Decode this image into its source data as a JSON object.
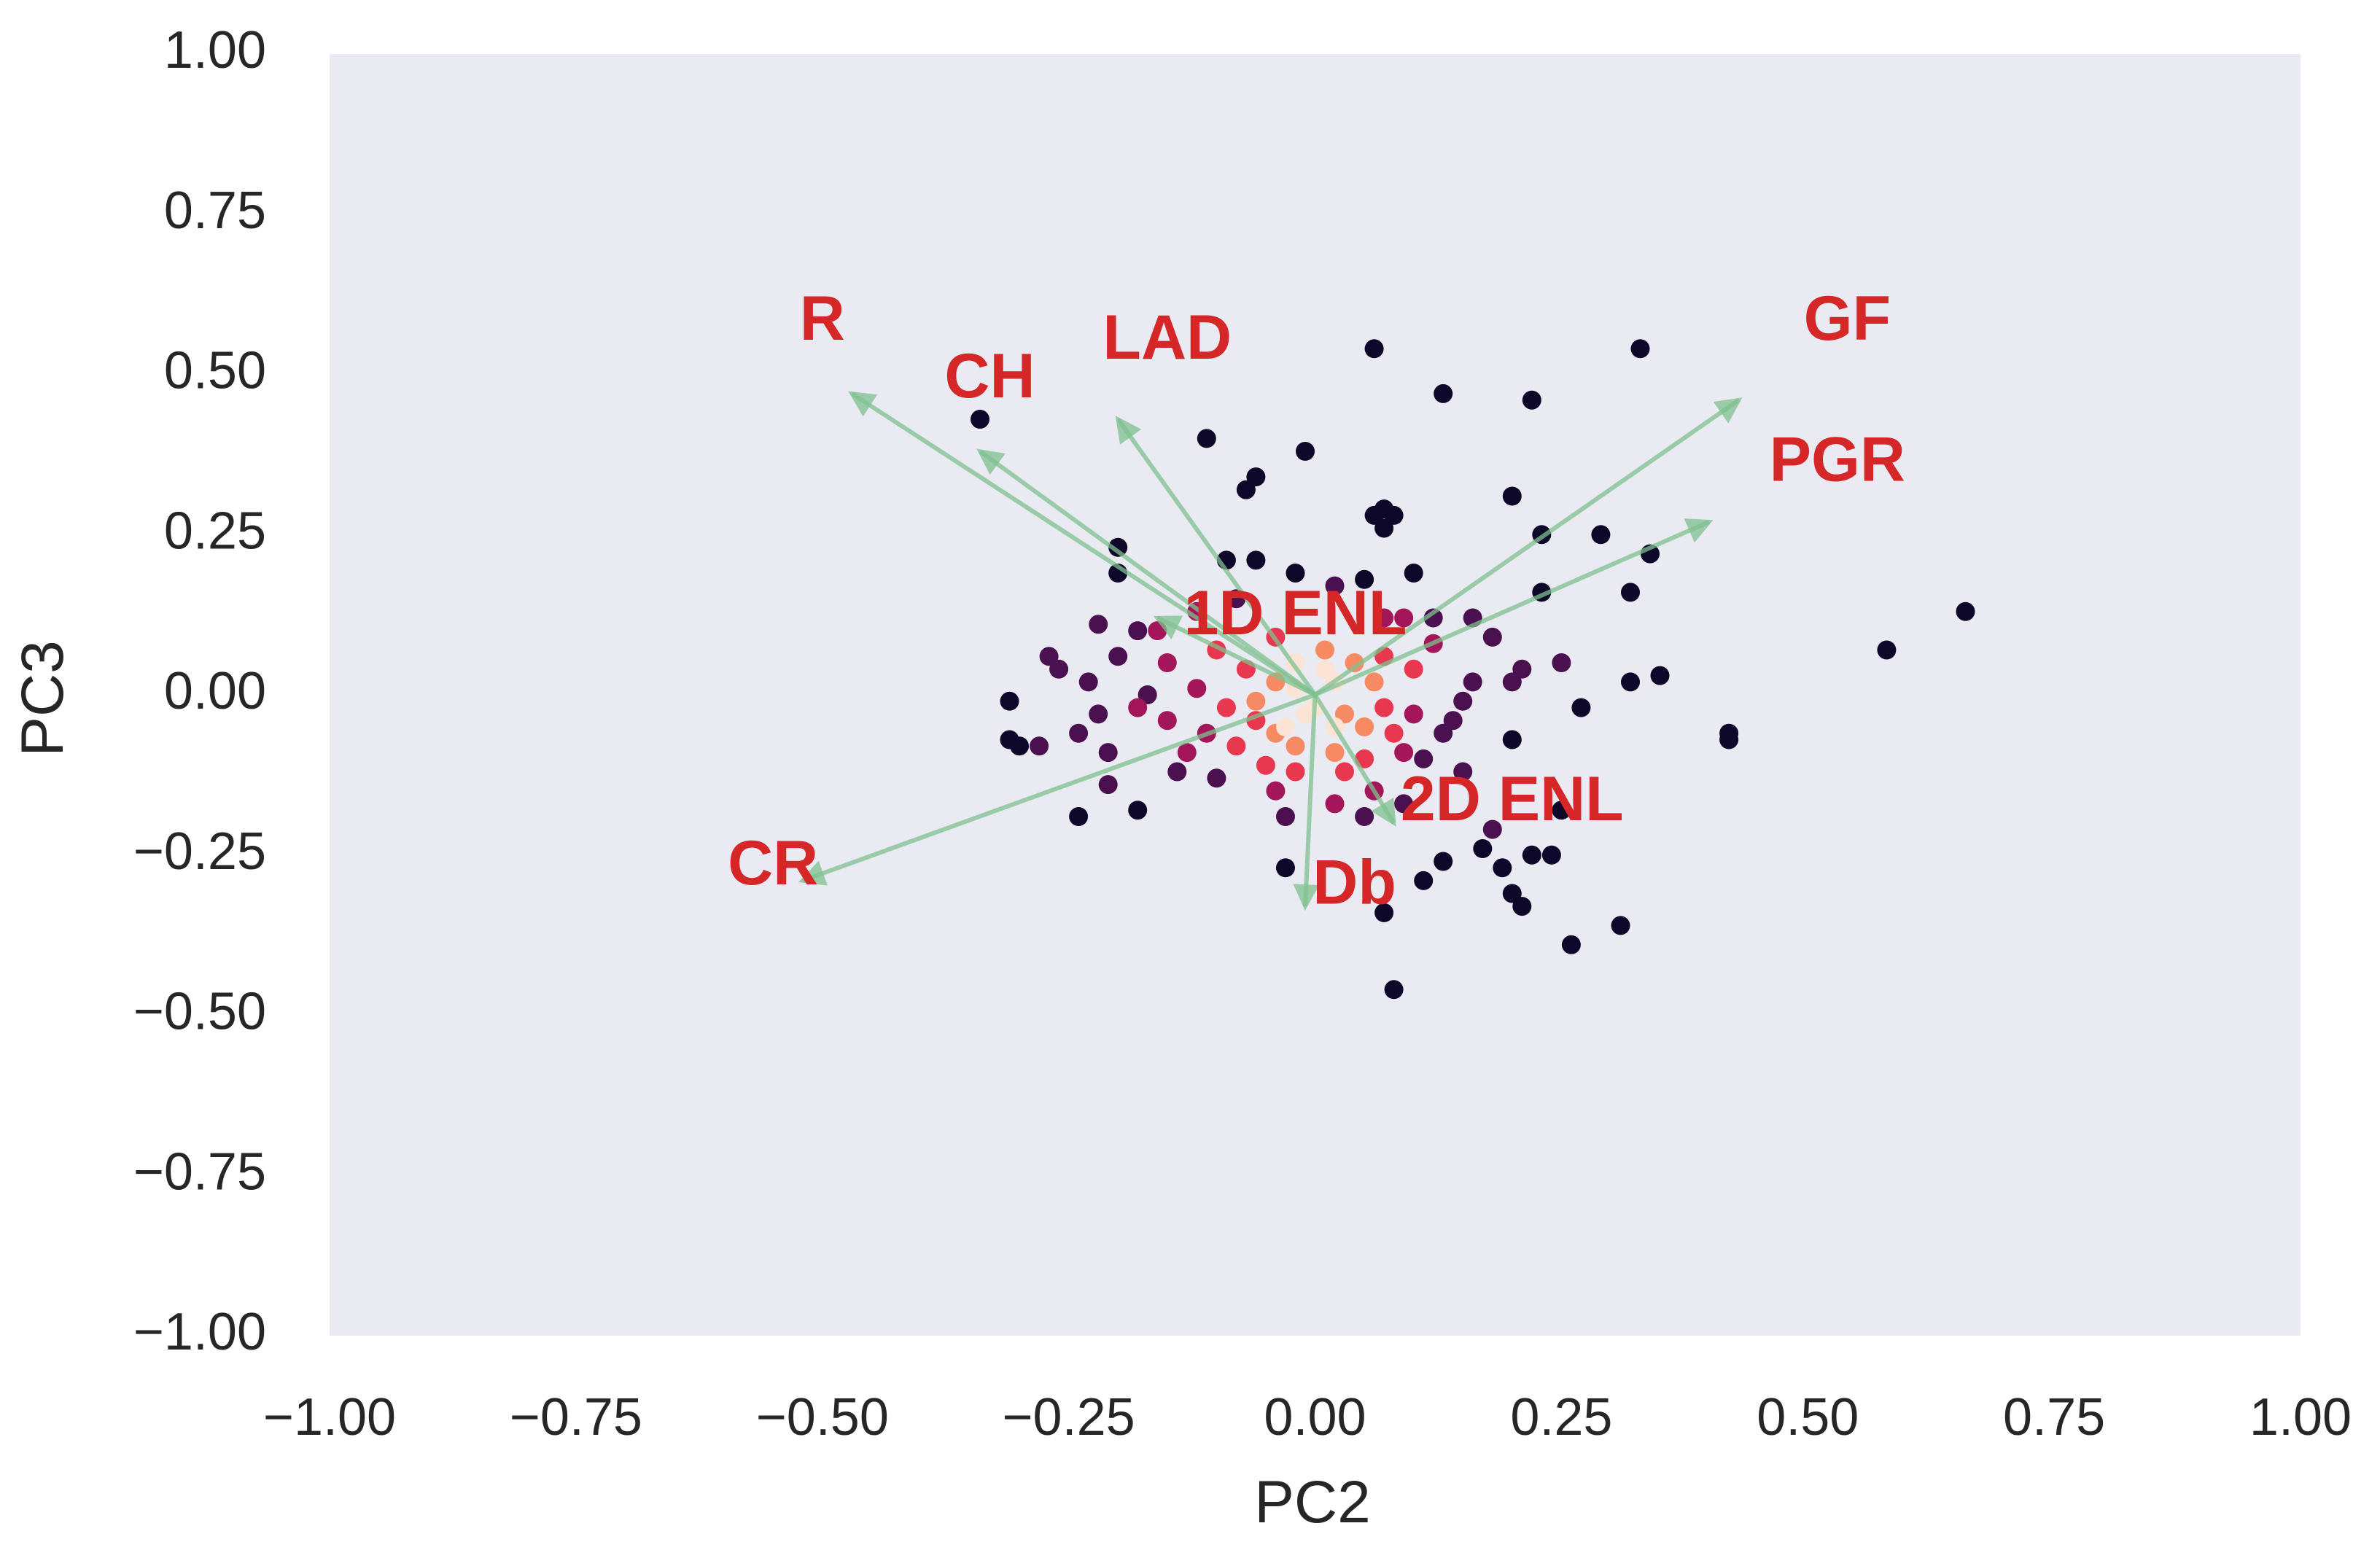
{
  "chart_data": {
    "type": "scatter",
    "title": "",
    "xlabel": "PC2",
    "ylabel": "PC3",
    "xlim": [
      -1.0,
      1.0
    ],
    "ylim": [
      -1.0,
      1.0
    ],
    "grid": false,
    "x_ticks": [
      -1.0,
      -0.75,
      -0.5,
      -0.25,
      0.0,
      0.25,
      0.5,
      0.75,
      1.0
    ],
    "y_ticks": [
      -1.0,
      -0.75,
      -0.5,
      -0.25,
      0.0,
      0.25,
      0.5,
      0.75,
      1.0
    ],
    "x_tick_labels": [
      "−1.00",
      "−0.75",
      "−0.50",
      "−0.25",
      "0.00",
      "0.25",
      "0.50",
      "0.75",
      "1.00"
    ],
    "y_tick_labels": [
      "−1.00",
      "−0.75",
      "−0.50",
      "−0.25",
      "0.00",
      "0.25",
      "0.50",
      "0.75",
      "1.00"
    ],
    "colors": {
      "background": "#eaeaf2",
      "arrow": "#7fc08f",
      "label": "#d62728",
      "palette_dark": "#0d0829",
      "palette_light": "#fbe4d5"
    },
    "loadings": [
      {
        "name": "R",
        "x": -0.47,
        "y": 0.47,
        "label_x": -0.5,
        "label_y": 0.58
      },
      {
        "name": "CH",
        "x": -0.34,
        "y": 0.38,
        "label_x": -0.33,
        "label_y": 0.49
      },
      {
        "name": "LAD",
        "x": -0.2,
        "y": 0.43,
        "label_x": -0.15,
        "label_y": 0.55
      },
      {
        "name": "GF",
        "x": 0.43,
        "y": 0.46,
        "label_x": 0.54,
        "label_y": 0.58
      },
      {
        "name": "PGR",
        "x": 0.4,
        "y": 0.27,
        "label_x": 0.53,
        "label_y": 0.36
      },
      {
        "name": "1D ENL",
        "x": -0.16,
        "y": 0.12,
        "label_x": -0.02,
        "label_y": 0.12
      },
      {
        "name": "2D ENL",
        "x": 0.08,
        "y": -0.2,
        "label_x": 0.2,
        "label_y": -0.17
      },
      {
        "name": "CR",
        "x": -0.52,
        "y": -0.29,
        "label_x": -0.55,
        "label_y": -0.27
      },
      {
        "name": "Db",
        "x": -0.01,
        "y": -0.33,
        "label_x": 0.04,
        "label_y": -0.3
      }
    ],
    "points": [
      {
        "x": 0.06,
        "y": 0.54,
        "d": 0
      },
      {
        "x": 0.33,
        "y": 0.54,
        "d": 0
      },
      {
        "x": 0.13,
        "y": 0.47,
        "d": 0
      },
      {
        "x": 0.22,
        "y": 0.46,
        "d": 0
      },
      {
        "x": -0.34,
        "y": 0.43,
        "d": 0
      },
      {
        "x": -0.11,
        "y": 0.4,
        "d": 0
      },
      {
        "x": -0.01,
        "y": 0.38,
        "d": 0
      },
      {
        "x": -0.06,
        "y": 0.34,
        "d": 0
      },
      {
        "x": -0.07,
        "y": 0.32,
        "d": 0
      },
      {
        "x": 0.2,
        "y": 0.31,
        "d": 0
      },
      {
        "x": 0.07,
        "y": 0.29,
        "d": 0
      },
      {
        "x": 0.06,
        "y": 0.28,
        "d": 0
      },
      {
        "x": 0.08,
        "y": 0.28,
        "d": 0
      },
      {
        "x": 0.07,
        "y": 0.26,
        "d": 0
      },
      {
        "x": 0.29,
        "y": 0.25,
        "d": 0
      },
      {
        "x": 0.23,
        "y": 0.25,
        "d": 0
      },
      {
        "x": -0.2,
        "y": 0.23,
        "d": 0
      },
      {
        "x": 0.34,
        "y": 0.22,
        "d": 0
      },
      {
        "x": -0.09,
        "y": 0.21,
        "d": 0
      },
      {
        "x": -0.06,
        "y": 0.21,
        "d": 0
      },
      {
        "x": -0.02,
        "y": 0.19,
        "d": 0
      },
      {
        "x": 0.1,
        "y": 0.19,
        "d": 0
      },
      {
        "x": 0.05,
        "y": 0.18,
        "d": 0
      },
      {
        "x": -0.2,
        "y": 0.19,
        "d": 0
      },
      {
        "x": 0.32,
        "y": 0.16,
        "d": 0
      },
      {
        "x": 0.23,
        "y": 0.16,
        "d": 0
      },
      {
        "x": 0.66,
        "y": 0.13,
        "d": 0
      },
      {
        "x": 0.58,
        "y": 0.07,
        "d": 0
      },
      {
        "x": 0.35,
        "y": 0.03,
        "d": 0
      },
      {
        "x": 0.32,
        "y": 0.02,
        "d": 0
      },
      {
        "x": 0.27,
        "y": -0.02,
        "d": 0
      },
      {
        "x": 0.42,
        "y": -0.06,
        "d": 0
      },
      {
        "x": 0.42,
        "y": -0.07,
        "d": 0
      },
      {
        "x": -0.31,
        "y": -0.01,
        "d": 0
      },
      {
        "x": -0.31,
        "y": -0.07,
        "d": 0
      },
      {
        "x": -0.3,
        "y": -0.08,
        "d": 0
      },
      {
        "x": 0.2,
        "y": -0.07,
        "d": 0
      },
      {
        "x": -0.24,
        "y": -0.19,
        "d": 0
      },
      {
        "x": -0.18,
        "y": -0.18,
        "d": 0
      },
      {
        "x": 0.25,
        "y": -0.18,
        "d": 0
      },
      {
        "x": 0.13,
        "y": -0.26,
        "d": 0
      },
      {
        "x": 0.17,
        "y": -0.24,
        "d": 0
      },
      {
        "x": 0.19,
        "y": -0.27,
        "d": 0
      },
      {
        "x": 0.22,
        "y": -0.25,
        "d": 0
      },
      {
        "x": 0.24,
        "y": -0.25,
        "d": 0
      },
      {
        "x": -0.03,
        "y": -0.27,
        "d": 0
      },
      {
        "x": 0.11,
        "y": -0.29,
        "d": 0
      },
      {
        "x": 0.2,
        "y": -0.31,
        "d": 0
      },
      {
        "x": 0.21,
        "y": -0.33,
        "d": 0
      },
      {
        "x": 0.07,
        "y": -0.34,
        "d": 0
      },
      {
        "x": 0.31,
        "y": -0.36,
        "d": 0
      },
      {
        "x": 0.26,
        "y": -0.39,
        "d": 0
      },
      {
        "x": 0.08,
        "y": -0.46,
        "d": 0
      },
      {
        "x": -0.22,
        "y": 0.11,
        "d": 1
      },
      {
        "x": -0.18,
        "y": 0.1,
        "d": 1
      },
      {
        "x": -0.27,
        "y": 0.06,
        "d": 1
      },
      {
        "x": -0.26,
        "y": 0.04,
        "d": 1
      },
      {
        "x": -0.2,
        "y": 0.06,
        "d": 1
      },
      {
        "x": -0.23,
        "y": 0.02,
        "d": 1
      },
      {
        "x": -0.17,
        "y": 0.0,
        "d": 1
      },
      {
        "x": -0.22,
        "y": -0.03,
        "d": 1
      },
      {
        "x": -0.28,
        "y": -0.08,
        "d": 1
      },
      {
        "x": -0.24,
        "y": -0.06,
        "d": 1
      },
      {
        "x": -0.21,
        "y": -0.09,
        "d": 1
      },
      {
        "x": -0.21,
        "y": -0.14,
        "d": 1
      },
      {
        "x": -0.14,
        "y": -0.12,
        "d": 1
      },
      {
        "x": -0.1,
        "y": -0.13,
        "d": 1
      },
      {
        "x": 0.12,
        "y": 0.12,
        "d": 1
      },
      {
        "x": 0.16,
        "y": 0.12,
        "d": 1
      },
      {
        "x": 0.18,
        "y": 0.09,
        "d": 1
      },
      {
        "x": 0.21,
        "y": 0.04,
        "d": 1
      },
      {
        "x": 0.2,
        "y": 0.02,
        "d": 1
      },
      {
        "x": 0.25,
        "y": 0.05,
        "d": 1
      },
      {
        "x": 0.16,
        "y": 0.02,
        "d": 1
      },
      {
        "x": 0.15,
        "y": -0.01,
        "d": 1
      },
      {
        "x": 0.14,
        "y": -0.04,
        "d": 1
      },
      {
        "x": 0.13,
        "y": -0.06,
        "d": 1
      },
      {
        "x": 0.11,
        "y": -0.1,
        "d": 1
      },
      {
        "x": 0.15,
        "y": -0.12,
        "d": 1
      },
      {
        "x": 0.05,
        "y": -0.19,
        "d": 1
      },
      {
        "x": 0.09,
        "y": -0.17,
        "d": 1
      },
      {
        "x": -0.03,
        "y": -0.19,
        "d": 1
      },
      {
        "x": -0.08,
        "y": 0.15,
        "d": 1
      },
      {
        "x": 0.02,
        "y": 0.17,
        "d": 1
      },
      {
        "x": 0.18,
        "y": -0.21,
        "d": 1
      },
      {
        "x": -0.15,
        "y": 0.05,
        "d": 2
      },
      {
        "x": -0.18,
        "y": -0.02,
        "d": 2
      },
      {
        "x": -0.15,
        "y": -0.04,
        "d": 2
      },
      {
        "x": -0.12,
        "y": 0.01,
        "d": 2
      },
      {
        "x": -0.13,
        "y": -0.09,
        "d": 2
      },
      {
        "x": -0.11,
        "y": -0.06,
        "d": 2
      },
      {
        "x": -0.16,
        "y": 0.1,
        "d": 2
      },
      {
        "x": 0.09,
        "y": 0.12,
        "d": 2
      },
      {
        "x": 0.12,
        "y": 0.08,
        "d": 2
      },
      {
        "x": 0.1,
        "y": -0.03,
        "d": 2
      },
      {
        "x": 0.09,
        "y": -0.09,
        "d": 2
      },
      {
        "x": 0.06,
        "y": -0.15,
        "d": 2
      },
      {
        "x": 0.02,
        "y": -0.17,
        "d": 2
      },
      {
        "x": -0.04,
        "y": -0.15,
        "d": 2
      },
      {
        "x": 0.07,
        "y": 0.12,
        "d": 2
      },
      {
        "x": -0.12,
        "y": 0.13,
        "d": 2
      },
      {
        "x": -0.07,
        "y": 0.04,
        "d": 3
      },
      {
        "x": -0.09,
        "y": -0.02,
        "d": 3
      },
      {
        "x": -0.06,
        "y": -0.04,
        "d": 3
      },
      {
        "x": -0.08,
        "y": -0.08,
        "d": 3
      },
      {
        "x": -0.05,
        "y": -0.11,
        "d": 3
      },
      {
        "x": 0.07,
        "y": 0.06,
        "d": 3
      },
      {
        "x": 0.1,
        "y": 0.04,
        "d": 3
      },
      {
        "x": 0.07,
        "y": -0.02,
        "d": 3
      },
      {
        "x": 0.08,
        "y": -0.06,
        "d": 3
      },
      {
        "x": 0.03,
        "y": -0.12,
        "d": 3
      },
      {
        "x": -0.02,
        "y": -0.12,
        "d": 3
      },
      {
        "x": 0.05,
        "y": -0.1,
        "d": 3
      },
      {
        "x": -0.1,
        "y": 0.07,
        "d": 3
      },
      {
        "x": -0.04,
        "y": 0.09,
        "d": 3
      },
      {
        "x": -0.04,
        "y": 0.02,
        "d": 4
      },
      {
        "x": -0.06,
        "y": -0.01,
        "d": 4
      },
      {
        "x": -0.04,
        "y": -0.06,
        "d": 4
      },
      {
        "x": 0.04,
        "y": 0.05,
        "d": 4
      },
      {
        "x": 0.06,
        "y": 0.02,
        "d": 4
      },
      {
        "x": 0.05,
        "y": -0.05,
        "d": 4
      },
      {
        "x": 0.02,
        "y": -0.09,
        "d": 4
      },
      {
        "x": -0.02,
        "y": -0.08,
        "d": 4
      },
      {
        "x": 0.01,
        "y": 0.07,
        "d": 4
      },
      {
        "x": 0.03,
        "y": -0.03,
        "d": 4
      },
      {
        "x": -0.02,
        "y": 0.01,
        "d": 5
      },
      {
        "x": -0.01,
        "y": -0.03,
        "d": 5
      },
      {
        "x": 0.02,
        "y": 0.02,
        "d": 5
      },
      {
        "x": 0.02,
        "y": -0.05,
        "d": 5
      },
      {
        "x": -0.03,
        "y": -0.05,
        "d": 5
      },
      {
        "x": 0.0,
        "y": -0.02,
        "d": 5
      },
      {
        "x": 0.01,
        "y": 0.04,
        "d": 5
      },
      {
        "x": -0.02,
        "y": 0.05,
        "d": 5
      }
    ]
  }
}
